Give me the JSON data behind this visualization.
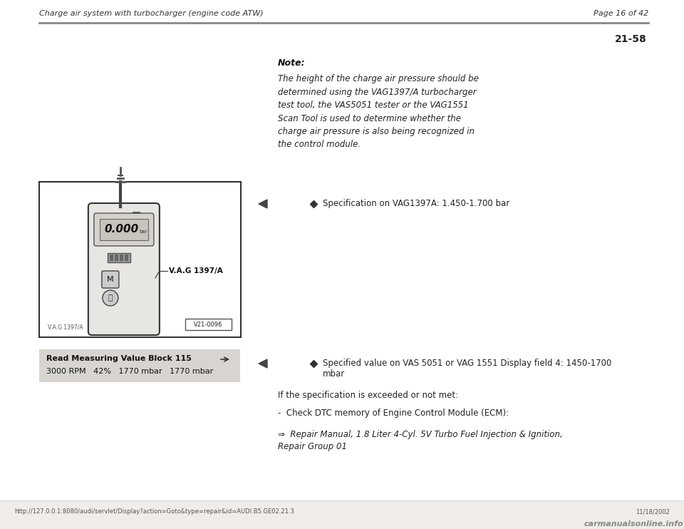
{
  "bg_color": "#ffffff",
  "page_bg": "#ffffff",
  "header_left": "Charge air system with turbocharger (engine code ATW)",
  "header_right": "Page 16 of 42",
  "section_number": "21-58",
  "note_title": "Note:",
  "note_body": "The height of the charge air pressure should be\ndetermined using the VAG1397/A turbocharger\ntest tool, the VAS5051 tester or the VAG1551\nScan Tool is used to determine whether the\ncharge air pressure is also being recognized in\nthe control module.",
  "spec1_bullet": "Specification on VAG1397A: 1.450-1.700 bar",
  "spec2_bullet_line1": "Specified value on VAS 5051 or VAG 1551 Display field 4: 1450-1700",
  "spec2_bullet_line2": "mbar",
  "if_spec_text": "If the specification is exceeded or not met:",
  "check_dtc": "-  Check DTC memory of Engine Control Module (ECM):",
  "repair_manual_line1": "⇒  Repair Manual, 1.8 Liter 4-Cyl. 5V Turbo Fuel Injection & Ignition,",
  "repair_manual_line2": "Repair Group 01",
  "read_block_label": "Read Measuring Value Block 115",
  "read_block_values": "3000 RPM   42%   1770 mbar   1770 mbar",
  "footer_url": "http://127.0.0.1:8080/audi/servlet/Display?action=Goto&type=repair&id=AUDI.B5.GE02.21.3",
  "footer_date": "11/18/2002",
  "footer_logo": "carmanualsonline.info",
  "footer_bg": "#f0ede8"
}
